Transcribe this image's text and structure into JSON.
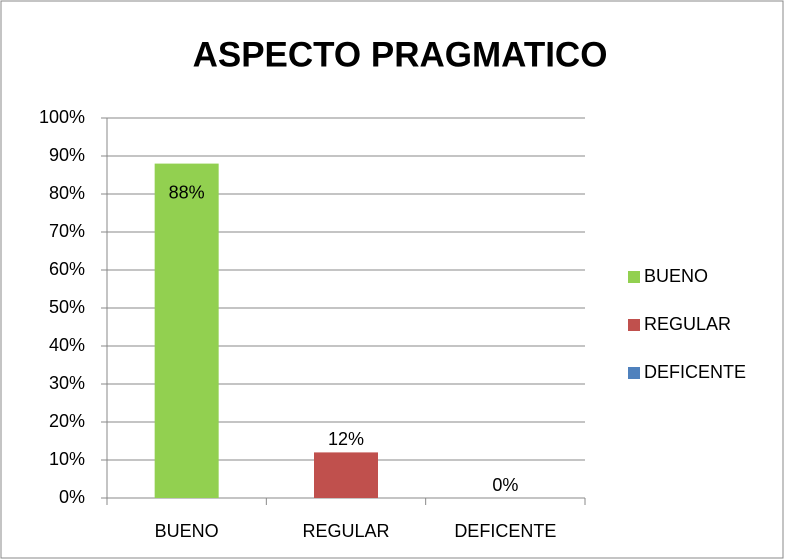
{
  "chart_data": {
    "type": "bar",
    "title": "ASPECTO PRAGMATICO",
    "categories": [
      "BUENO",
      "REGULAR",
      "DEFICENTE"
    ],
    "values": [
      88,
      12,
      0
    ],
    "value_labels": [
      "88%",
      "12%",
      "0%"
    ],
    "colors": [
      "#92d050",
      "#c0504d",
      "#4f81bd"
    ],
    "ylim": [
      0,
      100
    ],
    "yticks": [
      {
        "value": 0,
        "label": "0%"
      },
      {
        "value": 10,
        "label": "10%"
      },
      {
        "value": 20,
        "label": "20%"
      },
      {
        "value": 30,
        "label": "30%"
      },
      {
        "value": 40,
        "label": "40%"
      },
      {
        "value": 50,
        "label": "50%"
      },
      {
        "value": 60,
        "label": "60%"
      },
      {
        "value": 70,
        "label": "70%"
      },
      {
        "value": 80,
        "label": "80%"
      },
      {
        "value": 90,
        "label": "90%"
      },
      {
        "value": 100,
        "label": "100%"
      }
    ],
    "grid": true,
    "legend": "right"
  }
}
